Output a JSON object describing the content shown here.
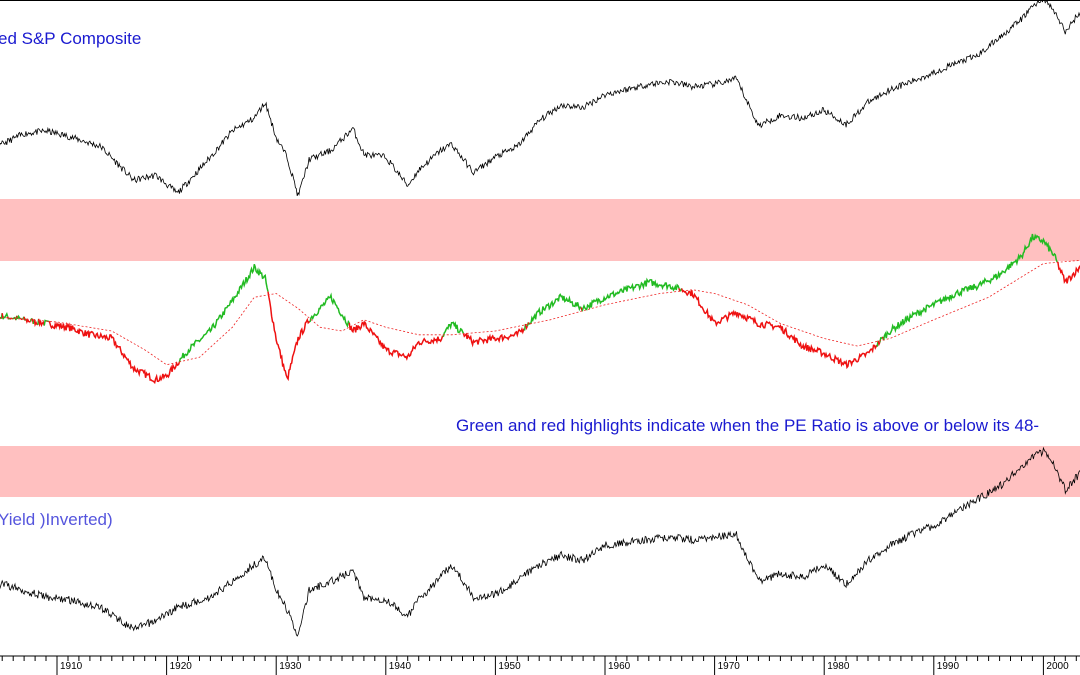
{
  "panels": {
    "top_title": "ed S&P Composite",
    "note": "Green and red highlights indicate when the PE Ratio is above or below its 48-",
    "bottom_title": "Yield )Inverted)"
  },
  "colors": {
    "band": "#ffc0c0",
    "line": "#000000",
    "above": "#22bb22",
    "below": "#ee1111",
    "ma": "#ee2222",
    "title": "#1a1ad0",
    "title_light": "#5555dd"
  },
  "chart_data": [
    {
      "type": "line",
      "title": "ed S&P Composite",
      "series": [
        {
          "x": [
            1901,
            1903,
            1905,
            1907,
            1909,
            1911,
            1914,
            1917,
            1919,
            1921,
            1924,
            1926,
            1928,
            1929,
            1930,
            1931,
            1932,
            1933,
            1935,
            1937,
            1938,
            1940,
            1942,
            1943,
            1945,
            1946,
            1948,
            1950,
            1952,
            1954,
            1956,
            1958,
            1960,
            1962,
            1964,
            1966,
            1968,
            1970,
            1972,
            1974,
            1976,
            1978,
            1980,
            1982,
            1984,
            1986,
            1988,
            1990,
            1992,
            1994,
            1996,
            1998,
            1999,
            2000,
            2001,
            2002,
            2003,
            2004
          ],
          "values": [
            0.3,
            0.18,
            0.4,
            0.48,
            0.5,
            0.46,
            0.38,
            0.12,
            0.16,
            0.02,
            0.3,
            0.5,
            0.6,
            0.72,
            0.45,
            0.3,
            0.0,
            0.28,
            0.35,
            0.52,
            0.32,
            0.3,
            0.08,
            0.2,
            0.35,
            0.4,
            0.18,
            0.3,
            0.38,
            0.58,
            0.7,
            0.68,
            0.78,
            0.82,
            0.86,
            0.88,
            0.84,
            0.86,
            0.9,
            0.54,
            0.62,
            0.6,
            0.66,
            0.55,
            0.72,
            0.82,
            0.88,
            0.95,
            1.02,
            1.08,
            1.22,
            1.36,
            1.46,
            1.52,
            1.42,
            1.26,
            1.38,
            1.46
          ]
        }
      ]
    },
    {
      "type": "line",
      "note": "Green and red highlights indicate when the PE Ratio is above or below its 48-",
      "series": [
        {
          "x": [
            1901,
            1903,
            1905,
            1907,
            1909,
            1911,
            1913,
            1915,
            1917,
            1919,
            1920,
            1922,
            1924,
            1926,
            1928,
            1929,
            1930,
            1931,
            1932,
            1933,
            1935,
            1937,
            1938,
            1940,
            1942,
            1943,
            1945,
            1946,
            1948,
            1950,
            1952,
            1954,
            1956,
            1958,
            1960,
            1962,
            1964,
            1966,
            1968,
            1970,
            1972,
            1974,
            1976,
            1978,
            1980,
            1982,
            1984,
            1986,
            1988,
            1990,
            1992,
            1994,
            1996,
            1998,
            1999,
            2000,
            2001,
            2002,
            2003,
            2004
          ],
          "values": [
            15.5,
            12.0,
            14.0,
            13.5,
            13.0,
            12.5,
            11.5,
            11.0,
            7.0,
            5.5,
            6.0,
            9.5,
            12.0,
            16.0,
            20.5,
            19.0,
            11.0,
            5.5,
            11.0,
            13.5,
            16.5,
            12.0,
            13.0,
            9.5,
            8.5,
            10.5,
            11.0,
            13.0,
            10.5,
            11.0,
            11.5,
            14.5,
            16.5,
            15.0,
            16.5,
            17.5,
            18.5,
            18.0,
            17.0,
            13.0,
            14.5,
            13.0,
            12.5,
            10.0,
            9.0,
            7.5,
            9.0,
            12.0,
            14.0,
            15.5,
            17.0,
            18.0,
            19.5,
            22.0,
            24.5,
            24.0,
            22.0,
            18.5,
            20.0,
            21.5
          ]
        },
        {
          "name": "48-",
          "x": [
            1901,
            1905,
            1910,
            1915,
            1918,
            1920,
            1923,
            1926,
            1928,
            1930,
            1932,
            1934,
            1936,
            1938,
            1940,
            1943,
            1946,
            1950,
            1955,
            1960,
            1965,
            1968,
            1970,
            1973,
            1976,
            1980,
            1983,
            1986,
            1990,
            1995,
            2000,
            2004
          ],
          "values": [
            14.5,
            13.8,
            13.2,
            12.0,
            9.5,
            7.5,
            8.5,
            12.5,
            16.5,
            17.0,
            15.0,
            12.5,
            12.0,
            13.5,
            12.5,
            11.5,
            11.5,
            12.0,
            13.5,
            15.5,
            17.0,
            17.5,
            17.0,
            15.5,
            13.0,
            11.0,
            10.0,
            11.0,
            13.5,
            16.5,
            21.0,
            21.5
          ]
        }
      ]
    },
    {
      "type": "line",
      "title": "Yield )Inverted)",
      "series": [
        {
          "x": [
            1901,
            1903,
            1905,
            1907,
            1909,
            1911,
            1914,
            1917,
            1919,
            1921,
            1924,
            1926,
            1928,
            1929,
            1930,
            1931,
            1932,
            1933,
            1935,
            1937,
            1938,
            1940,
            1942,
            1943,
            1945,
            1946,
            1948,
            1950,
            1952,
            1954,
            1956,
            1958,
            1960,
            1962,
            1964,
            1966,
            1968,
            1970,
            1972,
            1974,
            1976,
            1978,
            1980,
            1982,
            1984,
            1986,
            1988,
            1990,
            1992,
            1994,
            1996,
            1998,
            1999,
            2000,
            2001,
            2002,
            2003,
            2004
          ],
          "values": [
            0.45,
            0.25,
            0.4,
            0.35,
            0.3,
            0.28,
            0.22,
            0.05,
            0.12,
            0.22,
            0.3,
            0.42,
            0.55,
            0.6,
            0.35,
            0.2,
            0.0,
            0.35,
            0.42,
            0.5,
            0.3,
            0.28,
            0.15,
            0.28,
            0.45,
            0.55,
            0.3,
            0.32,
            0.42,
            0.55,
            0.62,
            0.58,
            0.7,
            0.72,
            0.74,
            0.76,
            0.74,
            0.76,
            0.78,
            0.42,
            0.48,
            0.45,
            0.55,
            0.4,
            0.58,
            0.7,
            0.78,
            0.85,
            0.95,
            1.05,
            1.15,
            1.3,
            1.38,
            1.42,
            1.32,
            1.12,
            1.22,
            1.3
          ]
        }
      ]
    }
  ],
  "x_axis": {
    "tick_labels": [
      "1910",
      "1920",
      "1930",
      "1940",
      "1950",
      "1960",
      "1970",
      "1980",
      "1990",
      "2000"
    ]
  }
}
